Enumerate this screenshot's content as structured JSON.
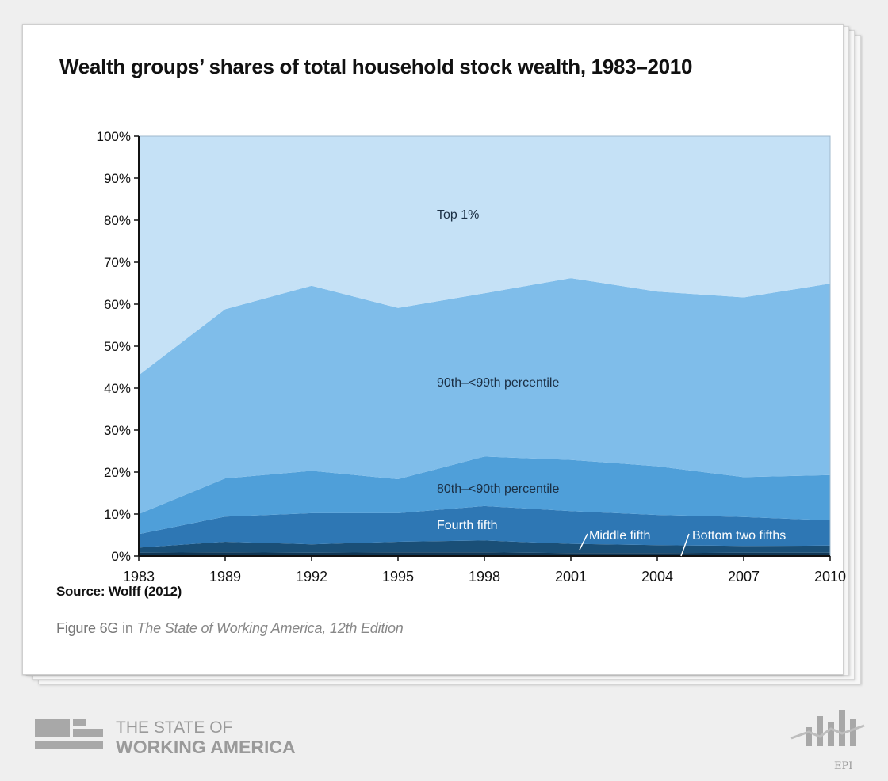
{
  "chart_data": {
    "type": "area",
    "stacked": true,
    "title": "Wealth groups’ shares of total household stock wealth, 1983–2010",
    "x": [
      "1983",
      "1989",
      "1992",
      "1995",
      "1998",
      "2001",
      "2004",
      "2007",
      "2010"
    ],
    "ylim": [
      0,
      100
    ],
    "yticks": [
      "0%",
      "10%",
      "20%",
      "30%",
      "40%",
      "50%",
      "60%",
      "70%",
      "80%",
      "90%",
      "100%"
    ],
    "series": [
      {
        "name": "Bottom two fifths",
        "color": "#0f3654",
        "values": [
          0.8,
          0.9,
          0.8,
          0.9,
          0.9,
          0.7,
          0.7,
          0.8,
          0.8
        ]
      },
      {
        "name": "Middle fifth",
        "color": "#1a4f77",
        "values": [
          1.2,
          2.5,
          2.0,
          2.5,
          2.8,
          2.2,
          1.9,
          1.6,
          1.7
        ]
      },
      {
        "name": "Fourth fifth",
        "color": "#2e77b4",
        "values": [
          3.2,
          6.0,
          7.4,
          6.8,
          8.2,
          7.8,
          7.2,
          6.9,
          6.0
        ]
      },
      {
        "name": "80th–<90th percentile",
        "color": "#4f9fd9",
        "values": [
          4.8,
          9.1,
          10.1,
          8.1,
          11.8,
          12.2,
          11.6,
          9.5,
          10.8
        ]
      },
      {
        "name": "90th–<99th percentile",
        "color": "#7fbdea",
        "values": [
          33.1,
          40.3,
          44.1,
          40.8,
          38.9,
          43.3,
          41.6,
          42.8,
          45.6
        ]
      },
      {
        "name": "Top 1%",
        "color": "#c5e1f6",
        "values": [
          56.9,
          41.2,
          35.6,
          40.9,
          37.4,
          33.8,
          37.0,
          38.4,
          35.1
        ]
      }
    ],
    "grid": false,
    "legend": "inline labels"
  },
  "source": "Source: Wolff (2012)",
  "figure_ref": {
    "prefix": "Figure 6G",
    "in": "in",
    "book": "The State of Working America, 12th Edition"
  },
  "brand": {
    "line1": "THE STATE OF",
    "line2": "WORKING AMERICA",
    "logo_icon": "swa-logo-icon"
  },
  "epi": {
    "label": "EPI",
    "icon": "epi-logo-icon"
  }
}
